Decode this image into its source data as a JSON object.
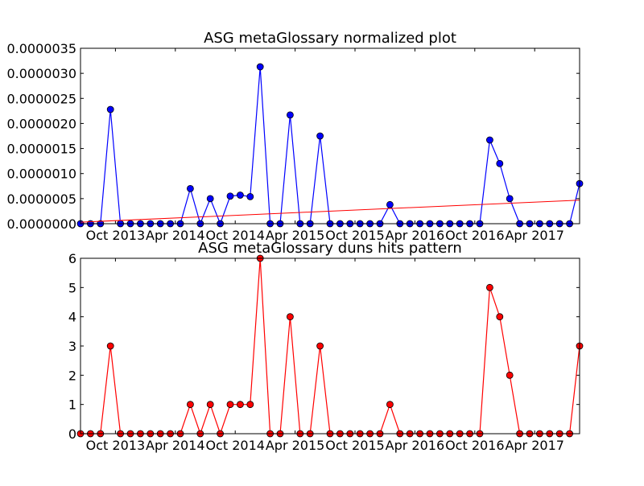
{
  "chart_data": [
    {
      "type": "line",
      "title": "ASG metaGlossary normalized plot",
      "xlabel": "",
      "ylabel": "",
      "x_tick_labels": [
        "Oct 2013",
        "Apr 2014",
        "Oct 2014",
        "Apr 2015",
        "Oct 2015",
        "Apr 2016",
        "Oct 2016",
        "Apr 2017"
      ],
      "x_ticks_index": [
        3.5,
        9.5,
        15.5,
        21.5,
        27.5,
        33.5,
        39.5,
        45.5
      ],
      "y_tick_labels": [
        "0.0000000",
        "0.0000005",
        "0.0000010",
        "0.0000015",
        "0.0000020",
        "0.0000025",
        "0.0000030",
        "0.0000035"
      ],
      "ylim": [
        0,
        3.5e-06
      ],
      "grid": false,
      "series": [
        {
          "color": "#0000ff",
          "marker": "circle",
          "values": [
            0,
            0,
            0,
            2.28e-06,
            0,
            0,
            0,
            0,
            0,
            0,
            0,
            7e-07,
            0,
            5e-07,
            0,
            5.5e-07,
            5.7e-07,
            5.4e-07,
            3.13e-06,
            0,
            0,
            2.17e-06,
            0,
            0,
            1.75e-06,
            0,
            0,
            0,
            0,
            0,
            0,
            3.8e-07,
            0,
            0,
            0,
            0,
            0,
            0,
            0,
            0,
            0,
            1.67e-06,
            1.2e-06,
            5e-07,
            0,
            0,
            0,
            0,
            0,
            0,
            8e-07
          ]
        },
        {
          "color": "#ff0000",
          "marker": "none",
          "kind": "trend",
          "start": 3e-08,
          "end": 4.7e-07
        }
      ]
    },
    {
      "type": "line",
      "title": "ASG metaGlossary duns hits pattern",
      "xlabel": "",
      "ylabel": "",
      "x_tick_labels": [
        "Oct 2013",
        "Apr 2014",
        "Oct 2014",
        "Apr 2015",
        "Oct 2015",
        "Apr 2016",
        "Oct 2016",
        "Apr 2017"
      ],
      "x_ticks_index": [
        3.5,
        9.5,
        15.5,
        21.5,
        27.5,
        33.5,
        39.5,
        45.5
      ],
      "y_tick_labels": [
        "0",
        "1",
        "2",
        "3",
        "4",
        "5",
        "6"
      ],
      "ylim": [
        0,
        6
      ],
      "grid": false,
      "series": [
        {
          "color": "#ff0000",
          "marker": "circle",
          "values": [
            0,
            0,
            0,
            3,
            0,
            0,
            0,
            0,
            0,
            0,
            0,
            1,
            0,
            1,
            0,
            1,
            1,
            1,
            6,
            0,
            0,
            4,
            0,
            0,
            3,
            0,
            0,
            0,
            0,
            0,
            0,
            1,
            0,
            0,
            0,
            0,
            0,
            0,
            0,
            0,
            0,
            5,
            4,
            2,
            0,
            0,
            0,
            0,
            0,
            0,
            3
          ]
        }
      ]
    }
  ]
}
